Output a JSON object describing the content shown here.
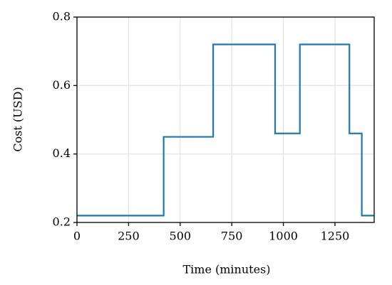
{
  "chart_data": {
    "type": "step",
    "x_label": "Time (minutes)",
    "y_label": "Cost (USD)",
    "x": [
      0,
      420,
      660,
      960,
      1080,
      1320,
      1380,
      1440
    ],
    "series": [
      {
        "name": "Cost",
        "color": "#1f77b4",
        "values": [
          0.22,
          0.45,
          0.72,
          0.46,
          0.72,
          0.46,
          0.22,
          0.22
        ]
      }
    ],
    "xlim": [
      0,
      1440
    ],
    "ylim": [
      0.2,
      0.8
    ],
    "xticks": [
      0,
      250,
      500,
      750,
      1000,
      1250
    ],
    "yticks": [
      {
        "value": 0.2,
        "label": "0.2"
      },
      {
        "value": 0.4,
        "label": "0.4"
      },
      {
        "value": 0.6,
        "label": "0.6"
      },
      {
        "value": 0.8,
        "label": "0.8"
      }
    ],
    "grid": true
  }
}
